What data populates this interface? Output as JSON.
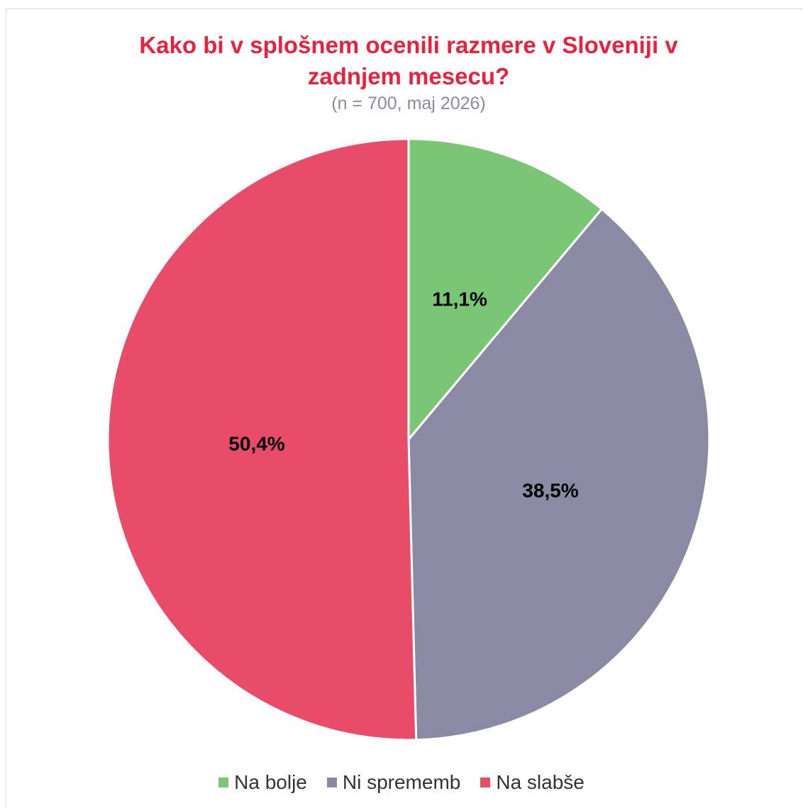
{
  "chart_data": {
    "type": "pie",
    "title_lines": [
      "Kako bi v splošnem ocenili razmere v Sloveniji v",
      "zadnjem mesecu?"
    ],
    "subtitle": "(n = 700, maj 2026)",
    "categories": [
      "Na bolje",
      "Ni sprememb",
      "Na slabše"
    ],
    "values": [
      11.1,
      38.5,
      50.4
    ],
    "data_labels": [
      "11,1%",
      "38,5%",
      "50,4%"
    ],
    "colors": [
      "#7bc675",
      "#8a8aa4",
      "#e84c69"
    ],
    "start_angle": "12 o'clock",
    "direction": "clockwise",
    "legend": "bottom"
  }
}
